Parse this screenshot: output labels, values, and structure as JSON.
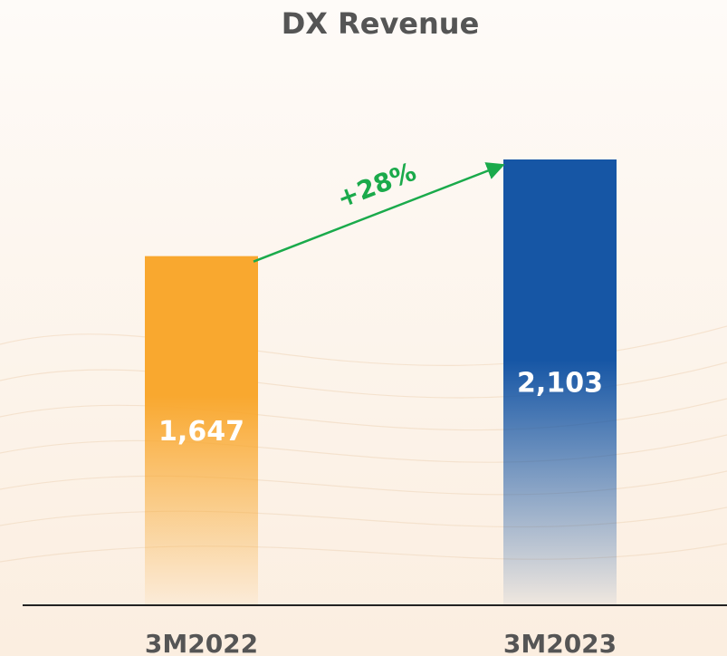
{
  "chart_data": {
    "type": "bar",
    "title": "DX Revenue",
    "categories": [
      "3M2022",
      "3M2023"
    ],
    "values": [
      1647,
      2103
    ],
    "value_labels": [
      "1,647",
      "2,103"
    ],
    "colors": [
      "#f9a82f",
      "#1656a5"
    ],
    "annotation": "+28%",
    "annotation_color": "#1aaa4b"
  }
}
